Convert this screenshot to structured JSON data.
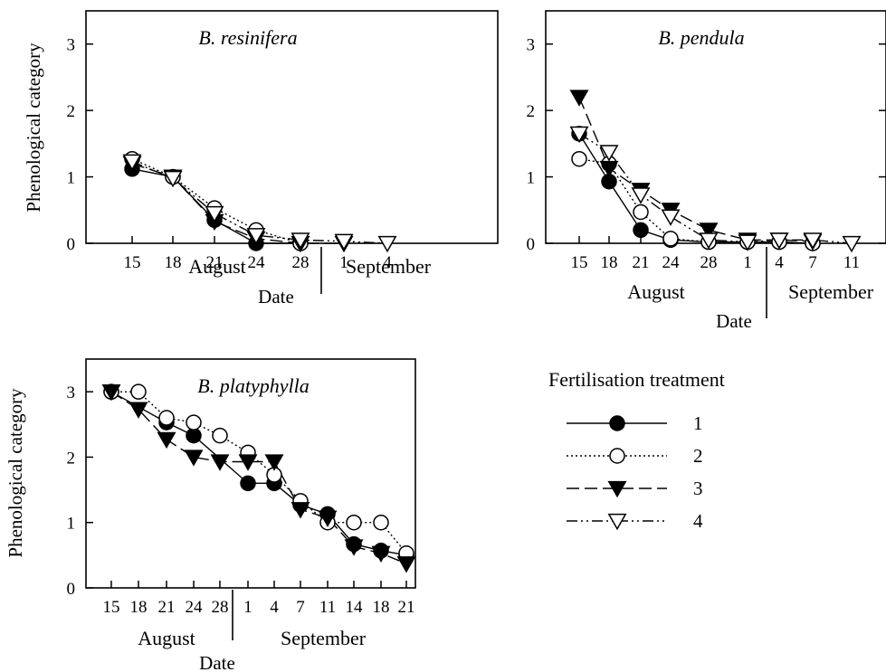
{
  "chart_data": [
    {
      "type": "line",
      "title": "B. resinifera",
      "xlabel": "Date",
      "ylabel": "Phenological category",
      "months": [
        "August",
        "September"
      ],
      "x": [
        "15",
        "18",
        "21",
        "24",
        "28",
        "1",
        "4"
      ],
      "month_split_after_index": 4,
      "ylim": [
        0,
        3.5
      ],
      "yticks": [
        "0",
        "1",
        "2",
        "3"
      ],
      "series": [
        {
          "name": "1",
          "values": [
            1.12,
            1.0,
            0.35,
            0.0,
            0.0,
            null,
            null
          ]
        },
        {
          "name": "2",
          "values": [
            1.27,
            1.0,
            0.53,
            0.2,
            0.0,
            null,
            null
          ]
        },
        {
          "name": "3",
          "values": [
            1.2,
            1.0,
            0.33,
            0.07,
            0.0,
            0.0,
            null
          ]
        },
        {
          "name": "4",
          "values": [
            1.23,
            0.98,
            0.45,
            0.12,
            0.05,
            0.03,
            0.0
          ]
        }
      ]
    },
    {
      "type": "line",
      "title": "B. pendula",
      "xlabel": "Date",
      "ylabel": "",
      "months": [
        "August",
        "September"
      ],
      "x": [
        "15",
        "18",
        "21",
        "24",
        "28",
        "1",
        "4",
        "7",
        "11"
      ],
      "month_split_after_index": 5,
      "ylim": [
        0,
        3.5
      ],
      "yticks": [
        "0",
        "1",
        "2",
        "3"
      ],
      "series": [
        {
          "name": "1",
          "values": [
            1.65,
            0.93,
            0.2,
            0.05,
            0.02,
            0.02,
            0.02,
            0.0,
            null
          ]
        },
        {
          "name": "2",
          "values": [
            1.27,
            1.2,
            0.47,
            0.07,
            0.02,
            0.02,
            0.02,
            0.0,
            null
          ]
        },
        {
          "name": "3",
          "values": [
            2.2,
            1.13,
            0.8,
            0.5,
            0.2,
            0.05,
            0.05,
            0.03,
            null
          ]
        },
        {
          "name": "4",
          "values": [
            1.65,
            1.37,
            0.73,
            0.4,
            0.05,
            0.02,
            0.05,
            0.05,
            0.0
          ]
        }
      ]
    },
    {
      "type": "line",
      "title": "B. platyphylla",
      "xlabel": "Date",
      "ylabel": "Phenological category",
      "months": [
        "August",
        "September"
      ],
      "x": [
        "15",
        "18",
        "21",
        "24",
        "28",
        "1",
        "4",
        "7",
        "11",
        "14",
        "18",
        "21"
      ],
      "month_split_after_index": 4,
      "ylim": [
        0,
        3.5
      ],
      "yticks": [
        "0",
        "1",
        "2",
        "3"
      ],
      "series": [
        {
          "name": "1",
          "values": [
            3.0,
            null,
            2.53,
            2.33,
            null,
            1.6,
            1.6,
            1.27,
            1.13,
            0.67,
            0.57,
            0.5
          ]
        },
        {
          "name": "2",
          "values": [
            3.0,
            3.0,
            2.6,
            2.53,
            2.33,
            2.07,
            1.73,
            1.33,
            1.0,
            1.0,
            1.0,
            0.53
          ]
        },
        {
          "name": "3",
          "values": [
            3.0,
            2.73,
            2.27,
            2.0,
            1.93,
            1.93,
            1.93,
            1.2,
            1.07,
            0.63,
            0.53,
            0.37
          ]
        },
        {
          "name": "4",
          "values": [
            null,
            null,
            null,
            null,
            null,
            null,
            null,
            null,
            null,
            null,
            null,
            null
          ]
        }
      ]
    }
  ],
  "legend": {
    "title": "Fertilisation treatment",
    "entries": [
      "1",
      "2",
      "3",
      "4"
    ]
  }
}
